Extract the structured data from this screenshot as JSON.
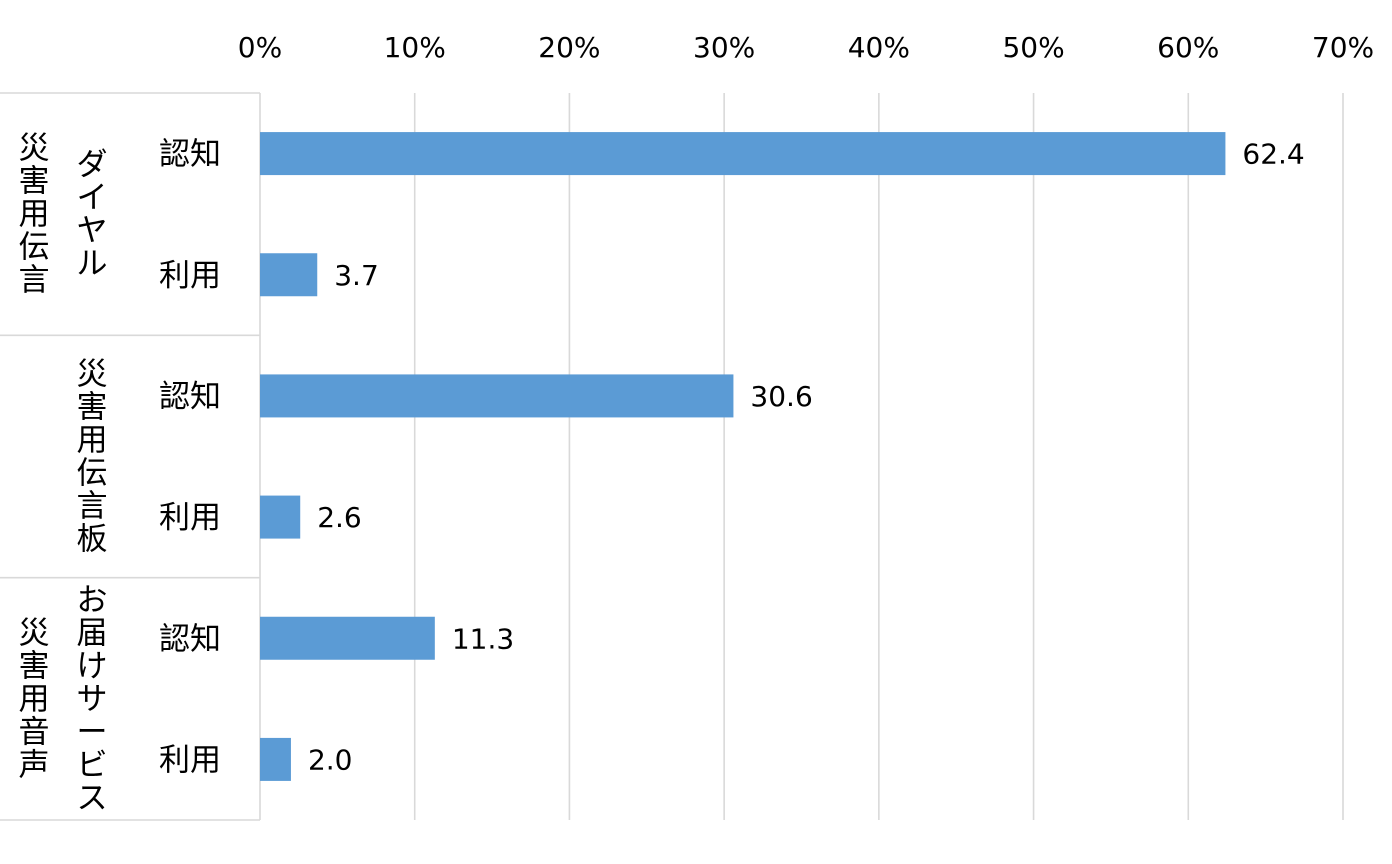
{
  "chart_data": {
    "type": "bar",
    "orientation": "horizontal",
    "title": "",
    "xlabel": "",
    "ylabel": "",
    "xlim": [
      0,
      70
    ],
    "x_ticks": [
      "0%",
      "10%",
      "20%",
      "30%",
      "40%",
      "50%",
      "60%",
      "70%"
    ],
    "x_axis_position": "top",
    "grid": true,
    "bar_color": "#5b9bd5",
    "groups": [
      {
        "name_lines": [
          "災害用伝言",
          "ダイヤル"
        ],
        "categories": [
          {
            "label": "認知",
            "value": 62.4,
            "value_label": "62.4"
          },
          {
            "label": "利用",
            "value": 3.7,
            "value_label": "3.7"
          }
        ]
      },
      {
        "name_lines": [
          "災害用伝言板"
        ],
        "categories": [
          {
            "label": "認知",
            "value": 30.6,
            "value_label": "30.6"
          },
          {
            "label": "利用",
            "value": 2.6,
            "value_label": "2.6"
          }
        ]
      },
      {
        "name_lines": [
          "災害用音声",
          "お届けサービス"
        ],
        "categories": [
          {
            "label": "認知",
            "value": 11.3,
            "value_label": "11.3"
          },
          {
            "label": "利用",
            "value": 2.0,
            "value_label": "2.0"
          }
        ]
      }
    ]
  }
}
